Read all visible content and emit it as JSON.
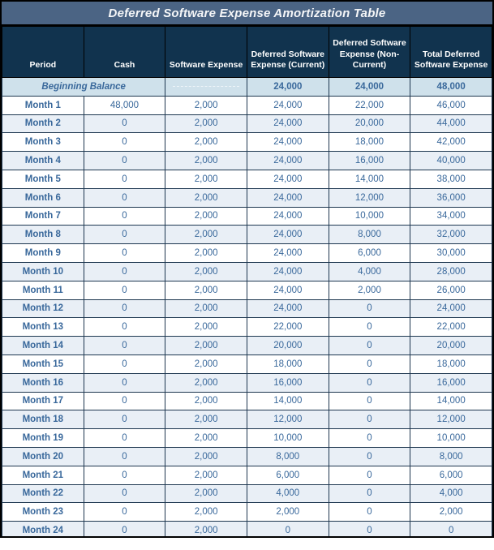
{
  "title": "Deferred Software Expense Amortization Table",
  "colors": {
    "title_bar_bg": "#4b6484",
    "header_bg": "#11334e",
    "grid_border": "#1e3750",
    "begin_row_bg": "#cfe1eb",
    "stripe_bg": "#e9eff6",
    "value_text": "#39689b",
    "period_text": "#2b5b8d",
    "title_text": "#f5f6f8"
  },
  "chart_data": {
    "type": "table",
    "title": "Deferred Software Expense Amortization Table",
    "columns": [
      "Period",
      "Cash",
      "Software Expense",
      "Deferred Software Expense (Current)",
      "Deferred Software Expense (Non-Current)",
      "Total Deferred Software Expense"
    ],
    "beginning_balance": {
      "period": "Beginning Balance",
      "cash": "",
      "software_expense": "",
      "deferred_current": "24,000",
      "deferred_non_current": "24,000",
      "total_deferred": "48,000"
    },
    "rows": [
      [
        "Month 1",
        "48,000",
        "2,000",
        "24,000",
        "22,000",
        "46,000"
      ],
      [
        "Month 2",
        "0",
        "2,000",
        "24,000",
        "20,000",
        "44,000"
      ],
      [
        "Month 3",
        "0",
        "2,000",
        "24,000",
        "18,000",
        "42,000"
      ],
      [
        "Month 4",
        "0",
        "2,000",
        "24,000",
        "16,000",
        "40,000"
      ],
      [
        "Month 5",
        "0",
        "2,000",
        "24,000",
        "14,000",
        "38,000"
      ],
      [
        "Month 6",
        "0",
        "2,000",
        "24,000",
        "12,000",
        "36,000"
      ],
      [
        "Month 7",
        "0",
        "2,000",
        "24,000",
        "10,000",
        "34,000"
      ],
      [
        "Month 8",
        "0",
        "2,000",
        "24,000",
        "8,000",
        "32,000"
      ],
      [
        "Month 9",
        "0",
        "2,000",
        "24,000",
        "6,000",
        "30,000"
      ],
      [
        "Month 10",
        "0",
        "2,000",
        "24,000",
        "4,000",
        "28,000"
      ],
      [
        "Month 11",
        "0",
        "2,000",
        "24,000",
        "2,000",
        "26,000"
      ],
      [
        "Month 12",
        "0",
        "2,000",
        "24,000",
        "0",
        "24,000"
      ],
      [
        "Month 13",
        "0",
        "2,000",
        "22,000",
        "0",
        "22,000"
      ],
      [
        "Month 14",
        "0",
        "2,000",
        "20,000",
        "0",
        "20,000"
      ],
      [
        "Month 15",
        "0",
        "2,000",
        "18,000",
        "0",
        "18,000"
      ],
      [
        "Month 16",
        "0",
        "2,000",
        "16,000",
        "0",
        "16,000"
      ],
      [
        "Month 17",
        "0",
        "2,000",
        "14,000",
        "0",
        "14,000"
      ],
      [
        "Month 18",
        "0",
        "2,000",
        "12,000",
        "0",
        "12,000"
      ],
      [
        "Month 19",
        "0",
        "2,000",
        "10,000",
        "0",
        "10,000"
      ],
      [
        "Month 20",
        "0",
        "2,000",
        "8,000",
        "0",
        "8,000"
      ],
      [
        "Month 21",
        "0",
        "2,000",
        "6,000",
        "0",
        "6,000"
      ],
      [
        "Month 22",
        "0",
        "2,000",
        "4,000",
        "0",
        "4,000"
      ],
      [
        "Month 23",
        "0",
        "2,000",
        "2,000",
        "0",
        "2,000"
      ],
      [
        "Month 24",
        "0",
        "2,000",
        "0",
        "0",
        "0"
      ]
    ]
  }
}
